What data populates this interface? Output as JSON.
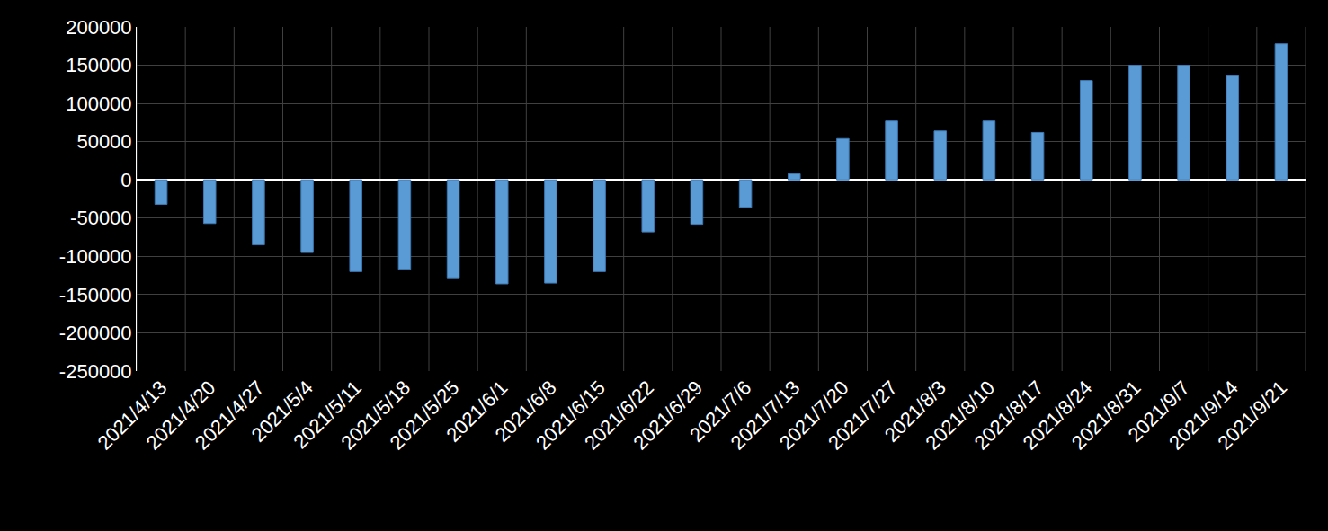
{
  "chart_data": {
    "type": "bar",
    "categories": [
      "2021/4/13",
      "2021/4/20",
      "2021/4/27",
      "2021/5/4",
      "2021/5/11",
      "2021/5/18",
      "2021/5/25",
      "2021/6/1",
      "2021/6/8",
      "2021/6/15",
      "2021/6/22",
      "2021/6/29",
      "2021/7/6",
      "2021/7/13",
      "2021/7/20",
      "2021/7/27",
      "2021/8/3",
      "2021/8/10",
      "2021/8/17",
      "2021/8/24",
      "2021/8/31",
      "2021/9/7",
      "2021/9/14",
      "2021/9/21"
    ],
    "values": [
      -32000,
      -57000,
      -85000,
      -95000,
      -120000,
      -117000,
      -128000,
      -136000,
      -135000,
      -120000,
      -68000,
      -58000,
      -36000,
      8000,
      54000,
      77000,
      64000,
      77000,
      62000,
      130000,
      150000,
      150000,
      136000,
      178000
    ],
    "color": "#5b9bd5",
    "ylim": [
      -250000,
      200000
    ],
    "yticks": [
      -250000,
      -200000,
      -150000,
      -100000,
      -50000,
      0,
      50000,
      100000,
      150000,
      200000
    ],
    "grid": true
  }
}
